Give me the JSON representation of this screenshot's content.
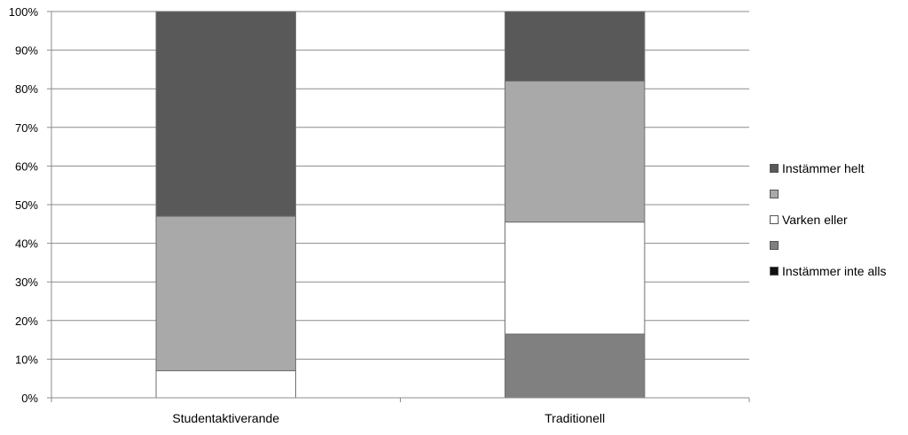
{
  "chart_data": {
    "type": "bar",
    "stacked": true,
    "normalized": true,
    "categories": [
      "Studentaktiverande",
      "Traditionell"
    ],
    "series": [
      {
        "name": "Instämmer inte alls",
        "color": "#111111",
        "values": [
          0,
          0
        ]
      },
      {
        "name": "",
        "color": "#808080",
        "values": [
          0,
          16.5
        ]
      },
      {
        "name": "Varken eller",
        "color": "#ffffff",
        "values": [
          7,
          29
        ]
      },
      {
        "name": "",
        "color": "#a9a9a9",
        "values": [
          40,
          36.5
        ]
      },
      {
        "name": "Instämmer helt",
        "color": "#595959",
        "values": [
          53,
          18
        ]
      }
    ],
    "y_ticks": [
      "0%",
      "10%",
      "20%",
      "30%",
      "40%",
      "50%",
      "60%",
      "70%",
      "80%",
      "90%",
      "100%"
    ],
    "ylim": [
      0,
      100
    ],
    "grid": true,
    "legend_position": "right",
    "title": "",
    "xlabel": "",
    "ylabel": ""
  }
}
